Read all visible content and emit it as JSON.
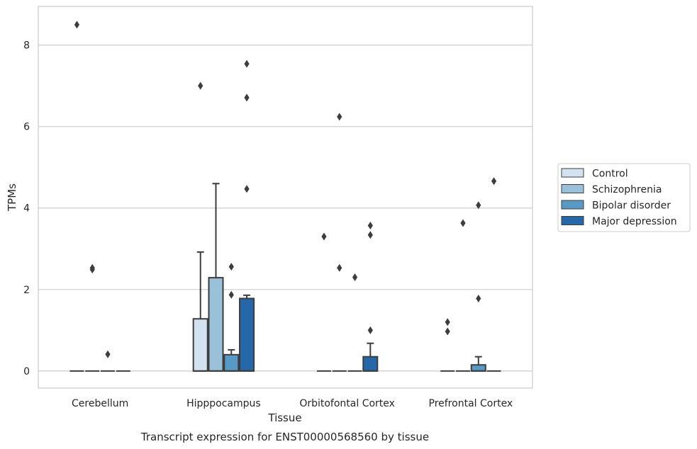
{
  "chart_data": {
    "type": "box",
    "caption": "Transcript expression for ENST00000568560 by tissue",
    "xlabel": "Tissue",
    "ylabel": "TPMs",
    "ylim": [
      -0.42,
      8.95
    ],
    "yticks": [
      "0",
      "2",
      "4",
      "6",
      "8"
    ],
    "ytick_values": [
      0,
      2,
      4,
      6,
      8
    ],
    "grid": true,
    "legend_position": "right",
    "categories": [
      "Cerebellum",
      "Hipppocampus",
      "Orbitofontal Cortex",
      "Prefrontal Cortex"
    ],
    "series": [
      {
        "name": "Control",
        "color": "#d2e2f1",
        "boxes": [
          {
            "q1": 0,
            "median": 0,
            "q3": 0,
            "whisker_low": 0,
            "whisker_high": 0,
            "outliers": [
              8.5
            ]
          },
          {
            "q1": 0,
            "median": 0,
            "q3": 1.28,
            "whisker_low": 0,
            "whisker_high": 2.92,
            "outliers": [
              7.0
            ]
          },
          {
            "q1": 0,
            "median": 0,
            "q3": 0,
            "whisker_low": 0,
            "whisker_high": 0,
            "outliers": [
              3.3
            ]
          },
          {
            "q1": 0,
            "median": 0,
            "q3": 0,
            "whisker_low": 0,
            "whisker_high": 0,
            "outliers": [
              1.2,
              0.97
            ]
          }
        ]
      },
      {
        "name": "Schizophrenia",
        "color": "#9bc1da",
        "boxes": [
          {
            "q1": 0,
            "median": 0,
            "q3": 0,
            "whisker_low": 0,
            "whisker_high": 0,
            "outliers": [
              2.53,
              2.49
            ]
          },
          {
            "q1": 0,
            "median": 0,
            "q3": 2.29,
            "whisker_low": 0,
            "whisker_high": 4.6,
            "outliers": []
          },
          {
            "q1": 0,
            "median": 0,
            "q3": 0,
            "whisker_low": 0,
            "whisker_high": 0,
            "outliers": [
              6.24,
              2.53
            ]
          },
          {
            "q1": 0,
            "median": 0,
            "q3": 0,
            "whisker_low": 0,
            "whisker_high": 0,
            "outliers": [
              3.63
            ]
          }
        ]
      },
      {
        "name": "Bipolar disorder",
        "color": "#5899c6",
        "boxes": [
          {
            "q1": 0,
            "median": 0,
            "q3": 0,
            "whisker_low": 0,
            "whisker_high": 0,
            "outliers": [
              0.41
            ]
          },
          {
            "q1": 0,
            "median": 0,
            "q3": 0.4,
            "whisker_low": 0,
            "whisker_high": 0.52,
            "outliers": [
              2.56,
              1.87
            ]
          },
          {
            "q1": 0,
            "median": 0,
            "q3": 0,
            "whisker_low": 0,
            "whisker_high": 0,
            "outliers": [
              2.3
            ]
          },
          {
            "q1": 0,
            "median": 0,
            "q3": 0.15,
            "whisker_low": 0,
            "whisker_high": 0.35,
            "outliers": [
              4.07,
              1.78
            ]
          }
        ]
      },
      {
        "name": "Major depression",
        "color": "#2667a9",
        "boxes": [
          {
            "q1": 0,
            "median": 0,
            "q3": 0,
            "whisker_low": 0,
            "whisker_high": 0,
            "outliers": []
          },
          {
            "q1": 0,
            "median": 0,
            "q3": 1.78,
            "whisker_low": 0,
            "whisker_high": 1.86,
            "outliers": [
              7.54,
              6.71,
              4.47
            ]
          },
          {
            "q1": 0,
            "median": 0,
            "q3": 0.35,
            "whisker_low": 0,
            "whisker_high": 0.68,
            "outliers": [
              3.57,
              3.34,
              1.0
            ]
          },
          {
            "q1": 0,
            "median": 0,
            "q3": 0,
            "whisker_low": 0,
            "whisker_high": 0,
            "outliers": [
              4.66
            ]
          }
        ]
      }
    ]
  }
}
